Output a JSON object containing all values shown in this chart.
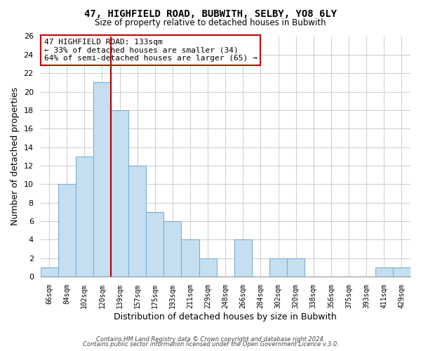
{
  "title": "47, HIGHFIELD ROAD, BUBWITH, SELBY, YO8 6LY",
  "subtitle": "Size of property relative to detached houses in Bubwith",
  "xlabel": "Distribution of detached houses by size in Bubwith",
  "ylabel": "Number of detached properties",
  "bin_labels": [
    "66sqm",
    "84sqm",
    "102sqm",
    "120sqm",
    "139sqm",
    "157sqm",
    "175sqm",
    "193sqm",
    "211sqm",
    "229sqm",
    "248sqm",
    "266sqm",
    "284sqm",
    "302sqm",
    "320sqm",
    "338sqm",
    "356sqm",
    "375sqm",
    "393sqm",
    "411sqm",
    "429sqm"
  ],
  "bar_heights": [
    1,
    10,
    13,
    21,
    18,
    12,
    7,
    6,
    4,
    2,
    0,
    4,
    0,
    2,
    2,
    0,
    0,
    0,
    0,
    1,
    1
  ],
  "bar_color": "#c5dff0",
  "bar_edge_color": "#7aaed6",
  "vline_x": 3.5,
  "vline_color": "#aa0000",
  "ylim": [
    0,
    26
  ],
  "yticks": [
    0,
    2,
    4,
    6,
    8,
    10,
    12,
    14,
    16,
    18,
    20,
    22,
    24,
    26
  ],
  "annotation_title": "47 HIGHFIELD ROAD: 133sqm",
  "annotation_line1": "← 33% of detached houses are smaller (34)",
  "annotation_line2": "64% of semi-detached houses are larger (65) →",
  "annotation_box_color": "#ffffff",
  "annotation_box_edge": "#cc0000",
  "footer1": "Contains HM Land Registry data © Crown copyright and database right 2024.",
  "footer2": "Contains public sector information licensed under the Open Government Licence v.3.0.",
  "background_color": "#ffffff",
  "grid_color": "#cccccc"
}
